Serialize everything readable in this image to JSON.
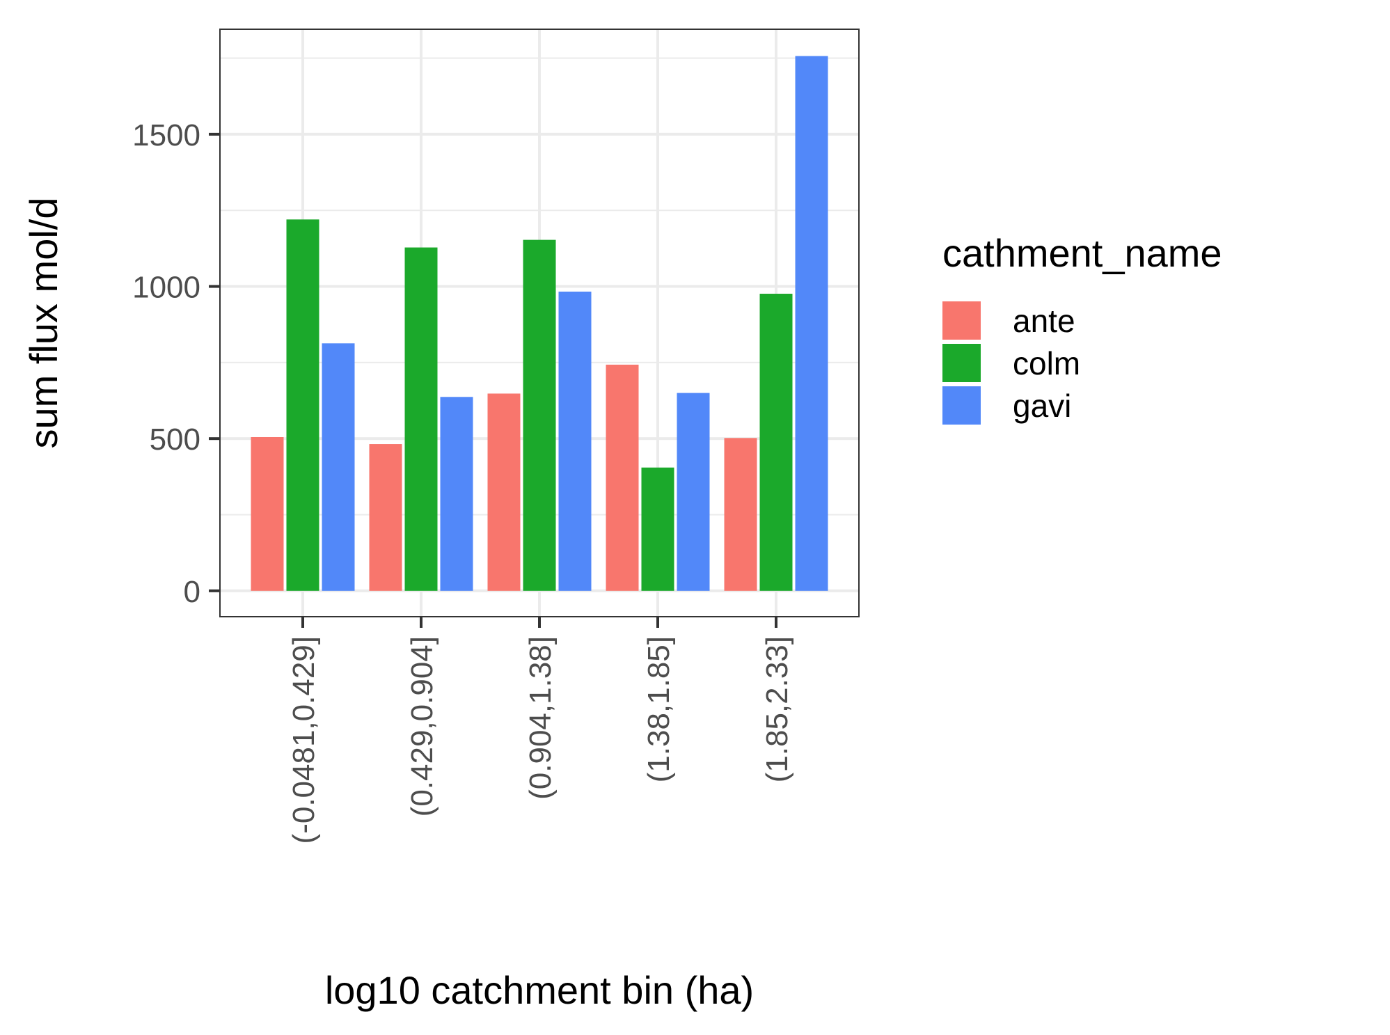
{
  "chart_data": {
    "type": "bar",
    "xlabel": "log10 catchment bin (ha)",
    "ylabel": "sum flux mol/d",
    "categories": [
      "(-0.0481,0.429]",
      "(0.429,0.904]",
      "(0.904,1.38]",
      "(1.38,1.85]",
      "(1.85,2.33]"
    ],
    "series": [
      {
        "name": "ante",
        "color": "#F8766D",
        "values": [
          505,
          482,
          648,
          743,
          502
        ]
      },
      {
        "name": "colm",
        "color": "#1BA92B",
        "values": [
          1220,
          1128,
          1153,
          405,
          976
        ]
      },
      {
        "name": "gavi",
        "color": "#5288F9",
        "values": [
          813,
          637,
          983,
          650,
          1757
        ]
      }
    ],
    "yticks": [
      0,
      500,
      1000,
      1500
    ],
    "ylim": [
      -85,
      1845
    ],
    "grid": true,
    "legend": {
      "title": "cathment_name",
      "position": "right"
    }
  }
}
